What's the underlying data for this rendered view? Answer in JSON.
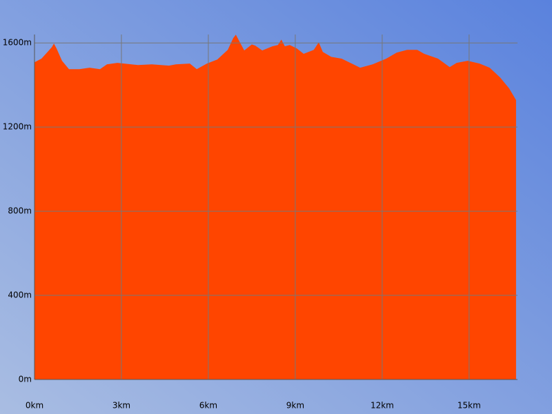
{
  "chart_data": {
    "type": "area",
    "color": "#ff4500",
    "grid": true,
    "x": [
      0,
      0.24,
      0.43,
      0.6,
      0.67,
      0.76,
      0.95,
      1.19,
      1.55,
      1.9,
      2.26,
      2.5,
      2.86,
      3.57,
      4.05,
      4.64,
      4.88,
      5.36,
      5.6,
      5.95,
      6.31,
      6.67,
      6.86,
      6.95,
      7.1,
      7.24,
      7.5,
      7.62,
      7.86,
      8.21,
      8.4,
      8.52,
      8.64,
      8.81,
      9.05,
      9.29,
      9.64,
      9.81,
      9.95,
      10.24,
      10.6,
      10.95,
      11.24,
      11.67,
      12.14,
      12.5,
      12.86,
      13.21,
      13.45,
      13.93,
      14.33,
      14.57,
      14.95,
      15.36,
      15.71,
      16.07,
      16.38,
      16.62
    ],
    "values": [
      1508,
      1525,
      1554,
      1580,
      1597,
      1574,
      1515,
      1475,
      1475,
      1482,
      1475,
      1498,
      1505,
      1495,
      1498,
      1492,
      1498,
      1502,
      1475,
      1502,
      1521,
      1567,
      1623,
      1639,
      1600,
      1564,
      1593,
      1587,
      1564,
      1584,
      1590,
      1616,
      1584,
      1590,
      1574,
      1548,
      1567,
      1603,
      1557,
      1534,
      1525,
      1502,
      1482,
      1498,
      1525,
      1554,
      1567,
      1567,
      1548,
      1525,
      1485,
      1505,
      1515,
      1502,
      1482,
      1436,
      1384,
      1328
    ],
    "xlim": [
      0,
      16.67
    ],
    "ylim": [
      0,
      1640
    ],
    "xticks": [
      {
        "value": 0,
        "label": "0km"
      },
      {
        "value": 3,
        "label": "3km"
      },
      {
        "value": 6,
        "label": "6km"
      },
      {
        "value": 9,
        "label": "9km"
      },
      {
        "value": 12,
        "label": "12km"
      },
      {
        "value": 15,
        "label": "15km"
      }
    ],
    "yticks": [
      {
        "value": 0,
        "label": "0m"
      },
      {
        "value": 400,
        "label": "400m"
      },
      {
        "value": 800,
        "label": "800m"
      },
      {
        "value": 1200,
        "label": "1200m"
      },
      {
        "value": 1600,
        "label": "1600m"
      }
    ]
  }
}
